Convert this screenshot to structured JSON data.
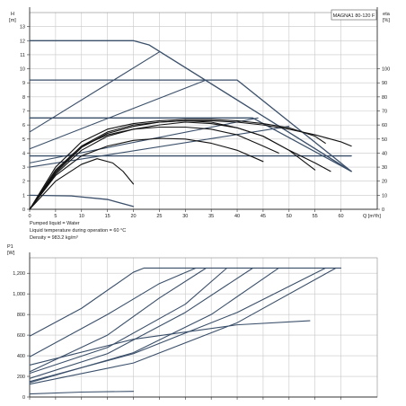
{
  "colors": {
    "system": "#3a4f6a",
    "dark": "#111111",
    "axis": "#333333",
    "grid": "#c8c8c8"
  },
  "chart_data": [
    {
      "type": "line",
      "legend_box": "MAGNA1 80-120 F",
      "ylabel_left": "H\n[m]",
      "ylabel_right": "eta\n[%]",
      "xlabel": "Q [m³/h]",
      "xlim": [
        0,
        67
      ],
      "ylim": [
        0,
        14
      ],
      "y2lim": [
        0,
        140
      ],
      "xticks": [
        0,
        5,
        10,
        15,
        20,
        25,
        30,
        35,
        40,
        45,
        50,
        55,
        60
      ],
      "yticks": [
        0,
        1,
        2,
        3,
        4,
        5,
        6,
        7,
        8,
        9,
        10,
        11,
        12,
        13
      ],
      "y2ticks": [
        0,
        10,
        20,
        30,
        40,
        50,
        60,
        70,
        80,
        90,
        100
      ],
      "notes": [
        "Pumped liquid = Water",
        "Liquid temperature during operation = 60 °C",
        "Density = 983.2 kg/m³"
      ],
      "series": [
        {
          "kind": "head",
          "points": [
            [
              0,
              12
            ],
            [
              20,
              12
            ],
            [
              23,
              11.7
            ],
            [
              62,
              2.7
            ]
          ]
        },
        {
          "kind": "head",
          "points": [
            [
              0,
              9.2
            ],
            [
              40,
              9.2
            ],
            [
              62,
              2.7
            ]
          ]
        },
        {
          "kind": "head",
          "points": [
            [
              0,
              6.5
            ],
            [
              43,
              6.5
            ],
            [
              62,
              2.7
            ]
          ]
        },
        {
          "kind": "head",
          "points": [
            [
              0,
              3.8
            ],
            [
              62,
              3.8
            ]
          ]
        },
        {
          "kind": "head",
          "points": [
            [
              0,
              1.0
            ],
            [
              8,
              0.95
            ],
            [
              15,
              0.7
            ],
            [
              20,
              0.2
            ]
          ]
        },
        {
          "kind": "system",
          "points": [
            [
              0,
              5.5
            ],
            [
              25,
              11.2
            ]
          ]
        },
        {
          "kind": "system",
          "points": [
            [
              0,
              4.3
            ],
            [
              34,
              9.2
            ]
          ]
        },
        {
          "kind": "system",
          "points": [
            [
              0,
              3.3
            ],
            [
              44,
              6.5
            ]
          ]
        },
        {
          "kind": "system",
          "points": [
            [
              0,
              3.0
            ],
            [
              50,
              5.9
            ]
          ]
        },
        {
          "kind": "efficiency",
          "points": [
            [
              0,
              0
            ],
            [
              2,
              8
            ],
            [
              5,
              20
            ],
            [
              10,
              32
            ],
            [
              13,
              36
            ],
            [
              16,
              33
            ],
            [
              18,
              27
            ],
            [
              20,
              18
            ]
          ]
        },
        {
          "kind": "efficiency",
          "points": [
            [
              0,
              0
            ],
            [
              5,
              25
            ],
            [
              10,
              42
            ],
            [
              15,
              52
            ],
            [
              20,
              57
            ],
            [
              25,
              60
            ],
            [
              30,
              62
            ],
            [
              35,
              61
            ],
            [
              40,
              58
            ],
            [
              45,
              52
            ],
            [
              50,
              42
            ],
            [
              55,
              28
            ]
          ]
        },
        {
          "kind": "efficiency",
          "points": [
            [
              0,
              0
            ],
            [
              5,
              26
            ],
            [
              10,
              44
            ],
            [
              15,
              54
            ],
            [
              20,
              59
            ],
            [
              25,
              62
            ],
            [
              30,
              63
            ],
            [
              35,
              62
            ],
            [
              40,
              58
            ],
            [
              45,
              52
            ],
            [
              50,
              42
            ],
            [
              55,
              33
            ],
            [
              58,
              27
            ]
          ]
        },
        {
          "kind": "efficiency",
          "points": [
            [
              0,
              0
            ],
            [
              5,
              27
            ],
            [
              10,
              45
            ],
            [
              15,
              55
            ],
            [
              20,
              60
            ],
            [
              25,
              62
            ],
            [
              30,
              63
            ],
            [
              35,
              63
            ],
            [
              40,
              62
            ],
            [
              45,
              60
            ],
            [
              50,
              57
            ],
            [
              55,
              53
            ],
            [
              60,
              48
            ],
            [
              62,
              45
            ]
          ]
        },
        {
          "kind": "efficiency",
          "points": [
            [
              0,
              0
            ],
            [
              5,
              30
            ],
            [
              10,
              48
            ],
            [
              15,
              57
            ],
            [
              20,
              61
            ],
            [
              25,
              63
            ],
            [
              30,
              64
            ],
            [
              35,
              64
            ],
            [
              40,
              63
            ],
            [
              45,
              61
            ],
            [
              50,
              58
            ],
            [
              55,
              52
            ],
            [
              57,
              47
            ]
          ]
        },
        {
          "kind": "efficiency",
          "points": [
            [
              0,
              0
            ],
            [
              5,
              28
            ],
            [
              10,
              45
            ],
            [
              15,
              53
            ],
            [
              20,
              57
            ],
            [
              25,
              58.5
            ],
            [
              30,
              58.5
            ],
            [
              35,
              57
            ],
            [
              40,
              53
            ],
            [
              45,
              45
            ],
            [
              48,
              40
            ]
          ]
        },
        {
          "kind": "efficiency",
          "points": [
            [
              0,
              0
            ],
            [
              5,
              24
            ],
            [
              10,
              38
            ],
            [
              15,
              45
            ],
            [
              20,
              49
            ],
            [
              25,
              50.5
            ],
            [
              30,
              50
            ],
            [
              35,
              47
            ],
            [
              40,
              42
            ],
            [
              45,
              34
            ]
          ]
        }
      ]
    },
    {
      "type": "line",
      "ylabel": "P1\n[W]",
      "ylim": [
        0,
        1350
      ],
      "yticks": [
        0,
        200,
        400,
        600,
        800,
        1000,
        1200
      ],
      "ytick_labels": [
        "0",
        "200",
        "400",
        "600",
        "800",
        "1,000",
        "1,200"
      ],
      "max_power": 1250,
      "series": [
        {
          "kind": "power",
          "points": [
            [
              0,
              590
            ],
            [
              10,
              860
            ],
            [
              20,
              1210
            ],
            [
              22,
              1250
            ],
            [
              55,
              1250
            ],
            [
              60,
              1250
            ]
          ]
        },
        {
          "kind": "power",
          "points": [
            [
              0,
              390
            ],
            [
              15,
              800
            ],
            [
              25,
              1100
            ],
            [
              32,
              1250
            ]
          ]
        },
        {
          "kind": "power",
          "points": [
            [
              0,
              245
            ],
            [
              15,
              600
            ],
            [
              25,
              960
            ],
            [
              34,
              1250
            ]
          ]
        },
        {
          "kind": "power",
          "points": [
            [
              0,
              230
            ],
            [
              15,
              480
            ],
            [
              30,
              900
            ],
            [
              38,
              1250
            ]
          ]
        },
        {
          "kind": "power",
          "points": [
            [
              0,
              180
            ],
            [
              15,
              420
            ],
            [
              30,
              820
            ],
            [
              43,
              1250
            ]
          ]
        },
        {
          "kind": "power",
          "points": [
            [
              0,
              140
            ],
            [
              20,
              430
            ],
            [
              35,
              800
            ],
            [
              48,
              1250
            ]
          ]
        },
        {
          "kind": "power",
          "points": [
            [
              0,
              150
            ],
            [
              20,
              420
            ],
            [
              40,
              820
            ],
            [
              57,
              1250
            ]
          ]
        },
        {
          "kind": "power",
          "points": [
            [
              0,
              125
            ],
            [
              20,
              330
            ],
            [
              40,
              720
            ],
            [
              59,
              1250
            ]
          ]
        },
        {
          "kind": "power",
          "points": [
            [
              0,
              310
            ],
            [
              20,
              560
            ],
            [
              40,
              700
            ],
            [
              54,
              740
            ]
          ]
        },
        {
          "kind": "power",
          "points": [
            [
              0,
              30
            ],
            [
              10,
              48
            ],
            [
              20,
              55
            ]
          ]
        }
      ]
    }
  ]
}
